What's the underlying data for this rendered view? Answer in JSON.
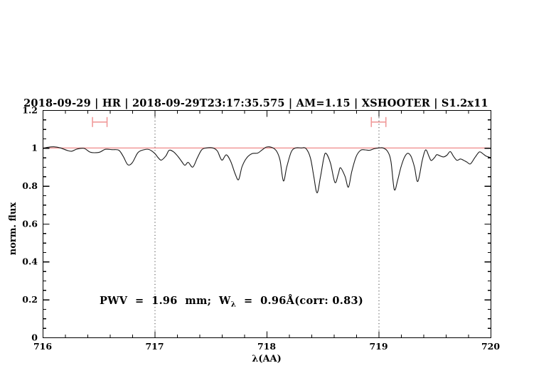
{
  "title": {
    "text": "2018-09-29 | HR | 2018-09-29T23:17:35.575 | AM=1.15 | XSHOOTER | S1.2x11"
  },
  "annotation": {
    "part1": "PWV  =  1.96  mm;  W",
    "sub": "λ",
    "part2": "  =  0.96Å(corr: 0.83)"
  },
  "colors": {
    "title_blue": "#2727d8",
    "annotation_blue": "#2727d8",
    "continuum_red": "#ee7b7b",
    "errorbar_red": "#f09a9a",
    "spectrum_black": "#1a1a1a",
    "guide_gray": "#404040",
    "frame_black": "#000000"
  },
  "axes": {
    "xlabel": "λ(AA)",
    "ylabel": "norm. flux",
    "xlim": [
      716,
      720
    ],
    "ylim": [
      0,
      1.2
    ],
    "x_major": [
      716,
      717,
      718,
      719,
      720
    ],
    "x_major_labels": [
      "716",
      "717",
      "718",
      "719",
      "720"
    ],
    "x_minor_step": 0.2,
    "y_major": [
      0,
      0.2,
      0.4,
      0.6,
      0.8,
      1,
      1.2
    ],
    "y_major_labels": [
      "0",
      "0.2",
      "0.4",
      "0.6",
      "0.8",
      "1",
      "1.2"
    ],
    "y_minor_step": 0.05,
    "grid": "off",
    "ticks": "inward-all-four-sides"
  },
  "chart_data": {
    "type": "line",
    "title": "2018-09-29 | HR | 2018-09-29T23:17:35.575 | AM=1.15 | XSHOOTER | S1.2x11",
    "xlabel": "λ(AA)",
    "ylabel": "norm. flux",
    "xlim": [
      716,
      720
    ],
    "ylim": [
      0,
      1.2
    ],
    "series": [
      {
        "name": "normalized-telluric-spectrum",
        "x": [
          716.0,
          716.05,
          716.1,
          716.16,
          716.22,
          716.26,
          716.31,
          716.37,
          716.42,
          716.46,
          716.51,
          716.56,
          716.62,
          716.68,
          716.72,
          716.76,
          716.8,
          716.85,
          716.9,
          716.95,
          717.0,
          717.03,
          717.06,
          717.1,
          717.13,
          717.17,
          717.21,
          717.24,
          717.27,
          717.3,
          717.34,
          717.38,
          717.42,
          717.46,
          717.52,
          717.56,
          717.6,
          717.64,
          717.68,
          717.72,
          717.75,
          717.78,
          717.82,
          717.87,
          717.92,
          717.96,
          718.0,
          718.05,
          718.09,
          718.12,
          718.15,
          718.18,
          718.22,
          718.26,
          718.31,
          718.35,
          718.39,
          718.42,
          718.45,
          718.48,
          718.51,
          718.53,
          718.57,
          718.61,
          718.64,
          718.66,
          718.7,
          718.73,
          718.76,
          718.8,
          718.84,
          718.88,
          718.92,
          718.96,
          719.0,
          719.04,
          719.08,
          719.11,
          719.14,
          719.17,
          719.2,
          719.23,
          719.26,
          719.29,
          719.32,
          719.35,
          719.39,
          719.42,
          719.45,
          719.47,
          719.5,
          719.52,
          719.55,
          719.58,
          719.61,
          719.64,
          719.67,
          719.7,
          719.73,
          719.76,
          719.79,
          719.82,
          719.86,
          719.9,
          719.93,
          719.96,
          720.0
        ],
        "y": [
          0.998,
          1.004,
          1.006,
          1.0,
          0.987,
          0.983,
          0.995,
          0.998,
          0.979,
          0.975,
          0.978,
          0.993,
          0.991,
          0.988,
          0.955,
          0.912,
          0.922,
          0.975,
          0.99,
          0.992,
          0.972,
          0.95,
          0.936,
          0.958,
          0.988,
          0.979,
          0.954,
          0.93,
          0.909,
          0.924,
          0.899,
          0.946,
          0.99,
          1.0,
          1.0,
          0.984,
          0.936,
          0.964,
          0.928,
          0.862,
          0.833,
          0.9,
          0.946,
          0.97,
          0.973,
          0.99,
          1.005,
          1.002,
          0.982,
          0.935,
          0.826,
          0.9,
          0.98,
          1.0,
          1.0,
          0.998,
          0.95,
          0.855,
          0.763,
          0.845,
          0.945,
          0.972,
          0.92,
          0.818,
          0.862,
          0.896,
          0.85,
          0.793,
          0.875,
          0.955,
          0.988,
          0.99,
          0.988,
          0.996,
          1.0,
          1.0,
          0.982,
          0.93,
          0.781,
          0.83,
          0.9,
          0.95,
          0.972,
          0.955,
          0.9,
          0.823,
          0.935,
          0.99,
          0.955,
          0.934,
          0.95,
          0.965,
          0.958,
          0.953,
          0.962,
          0.981,
          0.955,
          0.935,
          0.942,
          0.935,
          0.925,
          0.916,
          0.95,
          0.979,
          0.97,
          0.957,
          0.95
        ]
      },
      {
        "name": "continuum-level",
        "y_const": 1.0
      }
    ],
    "vlines": [
      {
        "name": "wavelength-guide-717",
        "x": 717,
        "style": "dotted"
      },
      {
        "name": "wavelength-guide-719",
        "x": 719,
        "style": "dotted"
      }
    ],
    "error_bars": [
      {
        "name": "band-marker-left",
        "x": 716.51,
        "xerr": 0.065,
        "y": 1.137
      },
      {
        "name": "band-marker-right",
        "x": 719.0,
        "xerr": 0.065,
        "y": 1.137
      }
    ],
    "annotations": [
      {
        "text": "PWV  =  1.96  mm;  Wλ  =  0.96Å(corr: 0.83)",
        "x": 716.51,
        "y": 0.21
      }
    ],
    "legend": "none"
  }
}
